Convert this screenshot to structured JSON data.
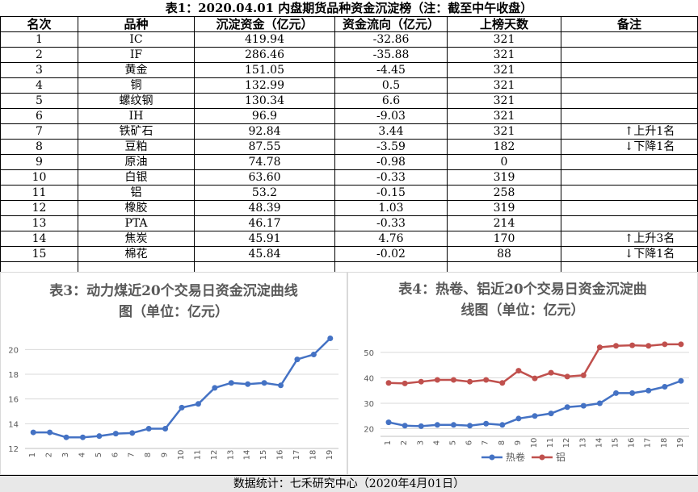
{
  "title": "表1：2020.04.01 内盘期货品种资金沉淀榜（注：截至中午收盘）",
  "table": {
    "headers": [
      "名次",
      "品种",
      "沉淀资金（亿元）",
      "资金流向（亿元）",
      "上榜天数",
      "备注"
    ],
    "rows": [
      [
        "1",
        "IC",
        "419.94",
        "-32.86",
        "321",
        ""
      ],
      [
        "2",
        "IF",
        "286.46",
        "-35.88",
        "321",
        ""
      ],
      [
        "3",
        "黄金",
        "151.05",
        "-4.45",
        "321",
        ""
      ],
      [
        "4",
        "铜",
        "132.99",
        "0.5",
        "321",
        ""
      ],
      [
        "5",
        "螺纹钢",
        "130.34",
        "6.6",
        "321",
        ""
      ],
      [
        "6",
        "IH",
        "96.9",
        "-9.03",
        "321",
        ""
      ],
      [
        "7",
        "铁矿石",
        "92.84",
        "3.44",
        "321",
        "↑上升1名"
      ],
      [
        "8",
        "豆粕",
        "87.55",
        "-3.59",
        "182",
        "↓下降1名"
      ],
      [
        "9",
        "原油",
        "74.78",
        "-0.98",
        "0",
        ""
      ],
      [
        "10",
        "白银",
        "63.60",
        "-0.33",
        "319",
        ""
      ],
      [
        "11",
        "铝",
        "53.2",
        "-0.15",
        "258",
        ""
      ],
      [
        "12",
        "橡胶",
        "48.39",
        "1.03",
        "319",
        ""
      ],
      [
        "13",
        "PTA",
        "46.17",
        "-0.33",
        "214",
        ""
      ],
      [
        "14",
        "焦炭",
        "45.91",
        "4.76",
        "170",
        "↑上升3名"
      ],
      [
        "15",
        "棉花",
        "45.84",
        "-0.02",
        "88",
        "↓下降1名"
      ],
      [
        "",
        "",
        "",
        "",
        "",
        ""
      ]
    ]
  },
  "chart_data": [
    {
      "type": "line",
      "title": "表3：动力煤近20个交易日资金沉淀曲线图（单位：亿元）",
      "title_lines": [
        "表3：动力煤近20个交易日资金沉淀曲线",
        "图（单位：亿元）"
      ],
      "x": [
        "1",
        "2",
        "3",
        "4",
        "5",
        "6",
        "7",
        "8",
        "9",
        "10",
        "11",
        "12",
        "13",
        "14",
        "15",
        "16",
        "17",
        "18",
        "19"
      ],
      "series": [
        {
          "name": "",
          "color": "#4472c4",
          "values": [
            13.3,
            13.3,
            12.9,
            12.9,
            13.0,
            13.2,
            13.25,
            13.6,
            13.6,
            15.3,
            15.6,
            16.9,
            17.3,
            17.2,
            17.3,
            17.1,
            19.2,
            19.6,
            20.9
          ]
        }
      ],
      "yticks": [
        12,
        14,
        16,
        18,
        20
      ],
      "ylim": [
        12,
        21
      ],
      "legend": "none"
    },
    {
      "type": "line",
      "title": "表4：热卷、铝近20个交易日资金沉淀曲线图（单位：亿元）",
      "title_lines": [
        "表4：热卷、铝近20个交易日资金沉淀曲",
        "线图（单位：亿元）"
      ],
      "x": [
        "1",
        "2",
        "3",
        "4",
        "5",
        "6",
        "7",
        "8",
        "9",
        "10",
        "11",
        "12",
        "13",
        "14",
        "15",
        "16",
        "17",
        "18",
        "19"
      ],
      "series": [
        {
          "name": "热卷",
          "color": "#4472c4",
          "values": [
            22.5,
            21.2,
            21.0,
            21.5,
            21.5,
            21.2,
            22.0,
            21.5,
            24.0,
            25.0,
            26.0,
            28.5,
            29.0,
            30.0,
            34.0,
            34.0,
            35.0,
            36.5,
            38.8
          ]
        },
        {
          "name": "铝",
          "color": "#c0504d",
          "values": [
            38.0,
            37.8,
            38.5,
            39.2,
            39.2,
            38.5,
            39.2,
            38.0,
            42.8,
            39.8,
            42.0,
            40.5,
            41.0,
            52.0,
            52.6,
            52.8,
            52.6,
            53.2,
            53.2
          ]
        }
      ],
      "yticks": [
        20,
        30,
        40,
        50
      ],
      "ylim": [
        17,
        56
      ],
      "legend": "bottom"
    }
  ],
  "footer": "数据统计：七禾研究中心（2020年4月01日）"
}
